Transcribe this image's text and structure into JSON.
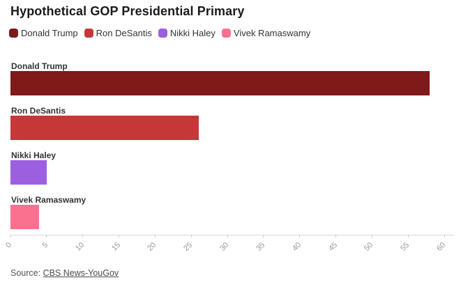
{
  "title": "Hypothetical GOP Presidential Primary",
  "legend": {
    "items": [
      {
        "label": "Donald Trump",
        "color": "#7e1a19"
      },
      {
        "label": "Ron DeSantis",
        "color": "#c63838"
      },
      {
        "label": "Nikki Haley",
        "color": "#9c5fe0"
      },
      {
        "label": "Vivek Ramaswamy",
        "color": "#fa7190"
      }
    ]
  },
  "chart_data": {
    "type": "bar",
    "orientation": "horizontal",
    "title": "Hypothetical GOP Presidential Primary",
    "categories": [
      "Donald Trump",
      "Ron DeSantis",
      "Nikki Haley",
      "Vivek Ramaswamy"
    ],
    "values": [
      58,
      26,
      5,
      4
    ],
    "colors": [
      "#7e1a19",
      "#c63838",
      "#9c5fe0",
      "#fa7190"
    ],
    "xlim": [
      0,
      60
    ],
    "xticks": [
      0,
      5,
      10,
      15,
      20,
      25,
      30,
      35,
      40,
      45,
      50,
      55,
      60
    ],
    "unit": "percent",
    "grid": false,
    "legend_position": "top",
    "source": "CBS News-YouGov"
  },
  "source": {
    "prefix": "Source: ",
    "link_text": "CBS News-YouGov"
  },
  "colors": {
    "title": "#1a1a1a",
    "bar_label": "#333333",
    "legend_text": "#333333",
    "axis_line": "#dadada",
    "tick": "#cccccc",
    "tick_label": "#999999",
    "source_text": "#555555"
  }
}
